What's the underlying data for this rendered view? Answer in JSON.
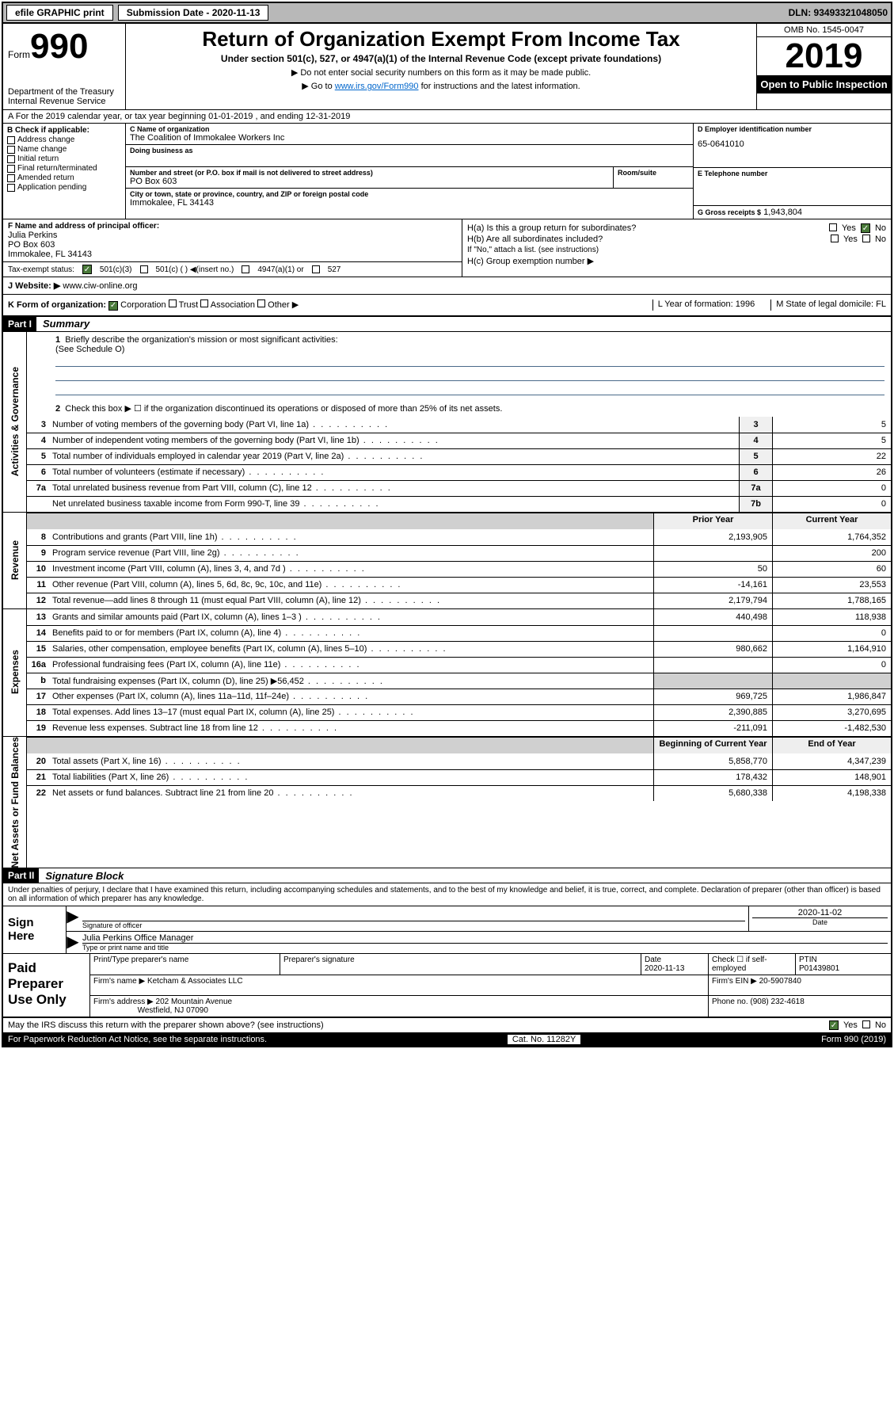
{
  "topbar": {
    "efile": "efile GRAPHIC print",
    "submission_label": "Submission Date - 2020-11-13",
    "dln": "DLN: 93493321048050"
  },
  "header": {
    "form_prefix": "Form",
    "form_num": "990",
    "dept": "Department of the Treasury\nInternal Revenue Service",
    "title": "Return of Organization Exempt From Income Tax",
    "subtitle": "Under section 501(c), 527, or 4947(a)(1) of the Internal Revenue Code (except private foundations)",
    "note1": "▶ Do not enter social security numbers on this form as it may be made public.",
    "note2_a": "▶ Go to ",
    "note2_link": "www.irs.gov/Form990",
    "note2_b": " for instructions and the latest information.",
    "omb": "OMB No. 1545-0047",
    "year": "2019",
    "open": "Open to Public Inspection"
  },
  "section_a": "A For the 2019 calendar year, or tax year beginning 01-01-2019    , and ending 12-31-2019",
  "checkboxes_b": {
    "title": "B Check if applicable:",
    "items": [
      "Address change",
      "Name change",
      "Initial return",
      "Final return/terminated",
      "Amended return",
      "Application pending"
    ]
  },
  "org": {
    "c_label": "C Name of organization",
    "name": "The Coalition of Immokalee Workers Inc",
    "dba_label": "Doing business as",
    "addr_label": "Number and street (or P.O. box if mail is not delivered to street address)",
    "room_label": "Room/suite",
    "addr": "PO Box 603",
    "city_label": "City or town, state or province, country, and ZIP or foreign postal code",
    "city": "Immokalee, FL  34143"
  },
  "right": {
    "d_label": "D Employer identification number",
    "ein": "65-0641010",
    "e_label": "E Telephone number",
    "g_label": "G Gross receipts $",
    "g_val": "1,943,804"
  },
  "f": {
    "label": "F  Name and address of principal officer:",
    "name": "Julia Perkins",
    "addr1": "PO Box 603",
    "addr2": "Immokalee, FL  34143"
  },
  "tax_status": {
    "label": "Tax-exempt status:",
    "c3": "501(c)(3)",
    "c": "501(c) (   ) ◀(insert no.)",
    "a1": "4947(a)(1) or",
    "s527": "527"
  },
  "h": {
    "a": "H(a)  Is this a group return for subordinates?",
    "b": "H(b)  Are all subordinates included?",
    "b_note": "If \"No,\" attach a list. (see instructions)",
    "c": "H(c)  Group exemption number ▶",
    "yes": "Yes",
    "no": "No"
  },
  "website": {
    "label": "J     Website: ▶",
    "url": "www.ciw-online.org"
  },
  "k": {
    "label": "K Form of organization:",
    "opts": [
      "Corporation",
      "Trust",
      "Association",
      "Other ▶"
    ],
    "l": "L Year of formation: 1996",
    "m": "M State of legal domicile: FL"
  },
  "part1": {
    "hdr": "Part I",
    "title": "Summary",
    "line1": "Briefly describe the organization's mission or most significant activities:",
    "line1_val": "(See Schedule O)",
    "line2": "Check this box ▶ ☐  if the organization discontinued its operations or disposed of more than 25% of its net assets.",
    "rows_ag": [
      {
        "n": "3",
        "t": "Number of voting members of the governing body (Part VI, line 1a)",
        "box": "3",
        "v": "5"
      },
      {
        "n": "4",
        "t": "Number of independent voting members of the governing body (Part VI, line 1b)",
        "box": "4",
        "v": "5"
      },
      {
        "n": "5",
        "t": "Total number of individuals employed in calendar year 2019 (Part V, line 2a)",
        "box": "5",
        "v": "22"
      },
      {
        "n": "6",
        "t": "Total number of volunteers (estimate if necessary)",
        "box": "6",
        "v": "26"
      },
      {
        "n": "7a",
        "t": "Total unrelated business revenue from Part VIII, column (C), line 12",
        "box": "7a",
        "v": "0"
      },
      {
        "n": "",
        "t": "Net unrelated business taxable income from Form 990-T, line 39",
        "box": "7b",
        "v": "0"
      }
    ],
    "prior": "Prior Year",
    "current": "Current Year",
    "rows_rev": [
      {
        "n": "8",
        "t": "Contributions and grants (Part VIII, line 1h)",
        "p": "2,193,905",
        "c": "1,764,352"
      },
      {
        "n": "9",
        "t": "Program service revenue (Part VIII, line 2g)",
        "p": "",
        "c": "200"
      },
      {
        "n": "10",
        "t": "Investment income (Part VIII, column (A), lines 3, 4, and 7d )",
        "p": "50",
        "c": "60"
      },
      {
        "n": "11",
        "t": "Other revenue (Part VIII, column (A), lines 5, 6d, 8c, 9c, 10c, and 11e)",
        "p": "-14,161",
        "c": "23,553"
      },
      {
        "n": "12",
        "t": "Total revenue—add lines 8 through 11 (must equal Part VIII, column (A), line 12)",
        "p": "2,179,794",
        "c": "1,788,165"
      }
    ],
    "rows_exp": [
      {
        "n": "13",
        "t": "Grants and similar amounts paid (Part IX, column (A), lines 1–3 )",
        "p": "440,498",
        "c": "118,938"
      },
      {
        "n": "14",
        "t": "Benefits paid to or for members (Part IX, column (A), line 4)",
        "p": "",
        "c": "0"
      },
      {
        "n": "15",
        "t": "Salaries, other compensation, employee benefits (Part IX, column (A), lines 5–10)",
        "p": "980,662",
        "c": "1,164,910"
      },
      {
        "n": "16a",
        "t": "Professional fundraising fees (Part IX, column (A), line 11e)",
        "p": "",
        "c": "0"
      },
      {
        "n": "b",
        "t": "Total fundraising expenses (Part IX, column (D), line 25) ▶56,452",
        "p": "grey",
        "c": "grey"
      },
      {
        "n": "17",
        "t": "Other expenses (Part IX, column (A), lines 11a–11d, 11f–24e)",
        "p": "969,725",
        "c": "1,986,847"
      },
      {
        "n": "18",
        "t": "Total expenses. Add lines 13–17 (must equal Part IX, column (A), line 25)",
        "p": "2,390,885",
        "c": "3,270,695"
      },
      {
        "n": "19",
        "t": "Revenue less expenses. Subtract line 18 from line 12",
        "p": "-211,091",
        "c": "-1,482,530"
      }
    ],
    "boy": "Beginning of Current Year",
    "eoy": "End of Year",
    "rows_na": [
      {
        "n": "20",
        "t": "Total assets (Part X, line 16)",
        "p": "5,858,770",
        "c": "4,347,239"
      },
      {
        "n": "21",
        "t": "Total liabilities (Part X, line 26)",
        "p": "178,432",
        "c": "148,901"
      },
      {
        "n": "22",
        "t": "Net assets or fund balances. Subtract line 21 from line 20",
        "p": "5,680,338",
        "c": "4,198,338"
      }
    ]
  },
  "vert_labels": {
    "ag": "Activities & Governance",
    "rev": "Revenue",
    "exp": "Expenses",
    "na": "Net Assets or Fund Balances"
  },
  "part2": {
    "hdr": "Part II",
    "title": "Signature Block",
    "perjury": "Under penalties of perjury, I declare that I have examined this return, including accompanying schedules and statements, and to the best of my knowledge and belief, it is true, correct, and complete. Declaration of preparer (other than officer) is based on all information of which preparer has any knowledge."
  },
  "sign": {
    "here": "Sign Here",
    "sig_officer": "Signature of officer",
    "date": "Date",
    "date_val": "2020-11-02",
    "name": "Julia Perkins  Office Manager",
    "name_lbl": "Type or print name and title"
  },
  "prep": {
    "left": "Paid Preparer Use Only",
    "h1": "Print/Type preparer's name",
    "h2": "Preparer's signature",
    "h3": "Date",
    "h3v": "2020-11-13",
    "h4": "Check ☐ if self-employed",
    "h5": "PTIN",
    "h5v": "P01439801",
    "firm_name_l": "Firm's name      ▶",
    "firm_name": "Ketcham & Associates LLC",
    "firm_ein_l": "Firm's EIN ▶",
    "firm_ein": "20-5907840",
    "firm_addr_l": "Firm's address ▶",
    "firm_addr1": "202 Mountain Avenue",
    "firm_addr2": "Westfield, NJ  07090",
    "phone_l": "Phone no.",
    "phone": "(908) 232-4618"
  },
  "footer": {
    "q": "May the IRS discuss this return with the preparer shown above? (see instructions)",
    "yes": "Yes",
    "no": "No",
    "pra": "For Paperwork Reduction Act Notice, see the separate instructions.",
    "cat": "Cat. No. 11282Y",
    "form": "Form 990 (2019)"
  }
}
